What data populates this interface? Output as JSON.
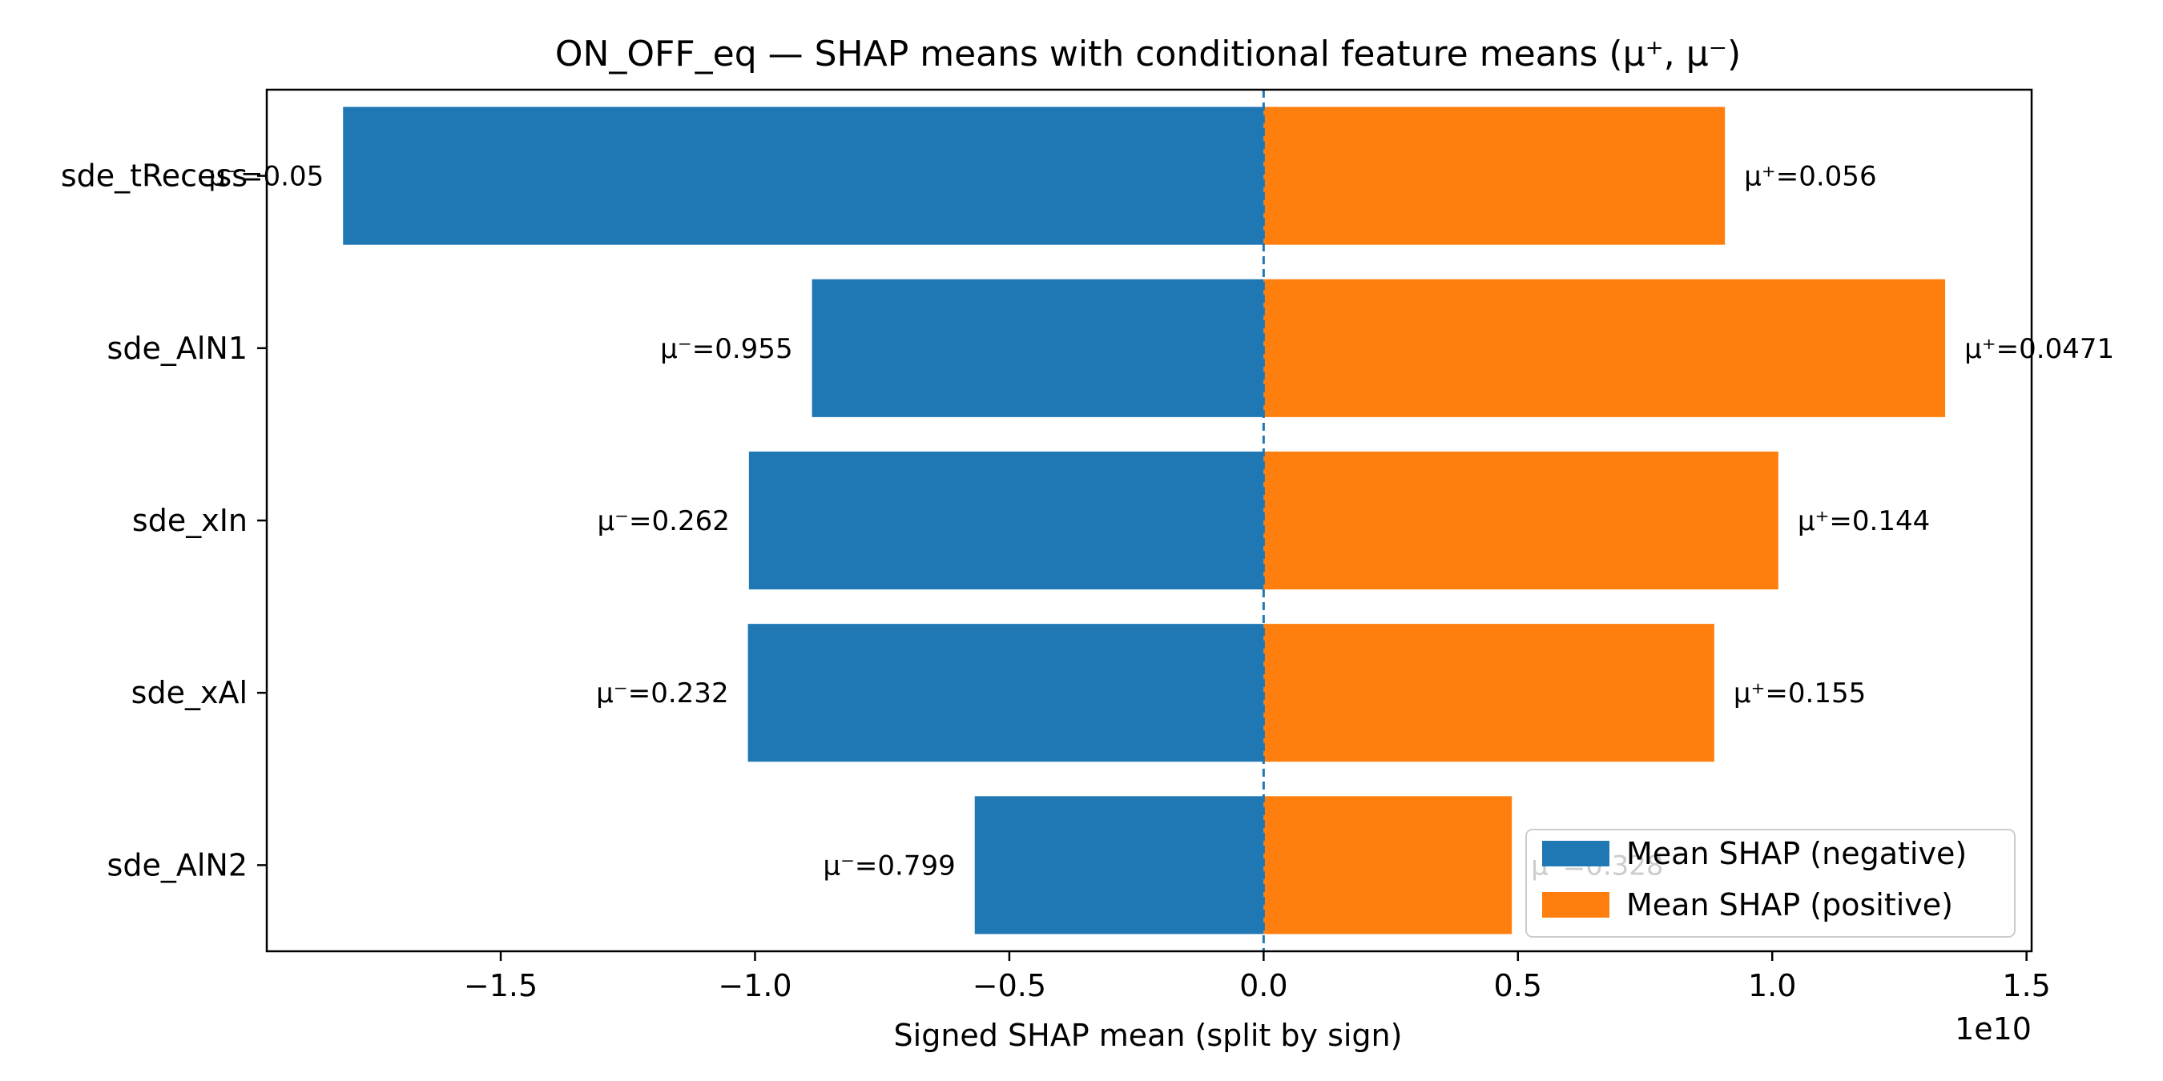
{
  "chart_data": {
    "type": "bar",
    "orientation": "horizontal",
    "title": "ON_OFF_eq — SHAP means with conditional feature means (μ⁺, μ⁻)",
    "xlabel": "Signed SHAP mean (split by sign)",
    "ylabel": "",
    "x_offset_label": "1e10",
    "x_scale_factor": 10000000000,
    "xlim": [
      -1.96,
      1.51
    ],
    "x_ticks": [
      -1.5,
      -1.0,
      -0.5,
      0.0,
      0.5,
      1.0,
      1.5
    ],
    "x_tick_labels": [
      "−1.5",
      "−1.0",
      "−0.5",
      "0.0",
      "0.5",
      "1.0",
      "1.5"
    ],
    "zero_line": {
      "style": "dashed",
      "color": "#1f77b4"
    },
    "categories": [
      "sde_tRecess",
      "sde_AlN1",
      "sde_xIn",
      "sde_xAl",
      "sde_AlN2"
    ],
    "series": [
      {
        "name": "Mean SHAP (negative)",
        "color": "#1f77b4",
        "values": [
          -1.81,
          -0.888,
          -1.012,
          -1.014,
          -0.568
        ],
        "annotations": [
          "μ⁻=0.05",
          "μ⁻=0.955",
          "μ⁻=0.262",
          "μ⁻=0.232",
          "μ⁻=0.799"
        ]
      },
      {
        "name": "Mean SHAP (positive)",
        "color": "#ff7f0e",
        "values": [
          0.907,
          1.34,
          1.012,
          0.886,
          0.488
        ],
        "annotations": [
          "μ⁺=0.056",
          "μ⁺=0.0471",
          "μ⁺=0.144",
          "μ⁺=0.155",
          "μ⁺=0.328"
        ]
      }
    ],
    "legend": {
      "position": "lower-right"
    },
    "grid": false
  }
}
